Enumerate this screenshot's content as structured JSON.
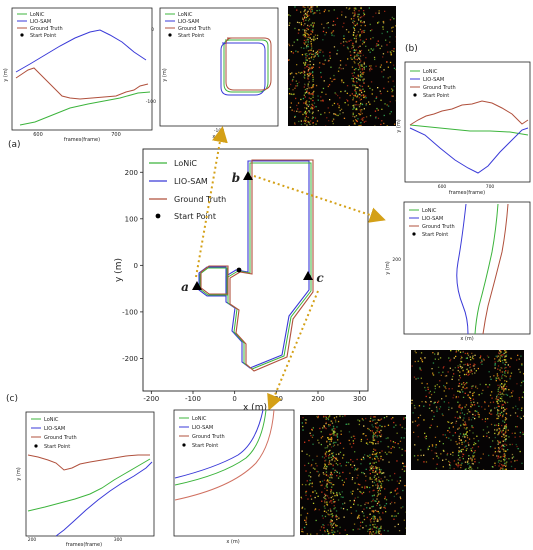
{
  "panel_labels": {
    "a": "(a)",
    "b": "(b)",
    "c": "(c)"
  },
  "point_labels": {
    "a": "a",
    "b": "b",
    "c": "c"
  },
  "legend": {
    "lonic": "LoNiC",
    "liosam": "LIO-SAM",
    "gt": "Ground Truth",
    "start": "Start Point"
  },
  "colors": {
    "lonic": "#3cb43c",
    "liosam": "#3a3ad8",
    "gt": "#b0503c",
    "arrow": "#d4a017",
    "marker": "#000000"
  },
  "main_chart": {
    "type": "line",
    "xlabel": "x (m)",
    "ylabel": "y (m)",
    "xticks": [
      -200,
      -100,
      0,
      100,
      200,
      300
    ],
    "yticks": [
      200,
      100,
      0,
      -100,
      -200
    ],
    "xlim": [
      -220,
      320
    ],
    "ylim": [
      -270,
      250
    ]
  },
  "chart_data": [
    {
      "type": "line",
      "panel": "a-left",
      "xlabel": "frames(frame)",
      "ylabel": "y (m)",
      "xticks": [
        600,
        700
      ],
      "series": [
        {
          "name": "LoNiC",
          "x": [
            560,
            590,
            620,
            650,
            680,
            710,
            740
          ],
          "y": [
            0.08,
            0.1,
            0.2,
            0.28,
            0.33,
            0.4,
            0.47
          ]
        },
        {
          "name": "LIO-SAM",
          "x": [
            560,
            580,
            600,
            620,
            640,
            660,
            680,
            700,
            720,
            740
          ],
          "y": [
            0.5,
            0.62,
            0.75,
            0.84,
            0.92,
            0.99,
            0.97,
            0.9,
            0.78,
            0.66
          ]
        },
        {
          "name": "Ground Truth",
          "x": [
            560,
            575,
            590,
            610,
            630,
            650,
            670,
            690,
            710,
            740
          ],
          "y": [
            0.45,
            0.55,
            0.5,
            0.36,
            0.3,
            0.3,
            0.31,
            0.32,
            0.36,
            0.45
          ]
        }
      ]
    },
    {
      "type": "line",
      "panel": "a-right",
      "xlabel": "x (m)",
      "ylabel": "y (m)",
      "xticks": [
        -100
      ],
      "yticks": [
        0,
        -100
      ],
      "series": [
        {
          "name": "LoNiC",
          "x": [
            -120,
            -50
          ],
          "y": [
            20,
            -95
          ]
        },
        {
          "name": "LIO-SAM",
          "x": [
            -120,
            -50
          ],
          "y": [
            20,
            -95
          ]
        },
        {
          "name": "Ground Truth",
          "x": [
            -120,
            -50
          ],
          "y": [
            20,
            -95
          ]
        }
      ]
    },
    {
      "type": "line",
      "panel": "b",
      "xlabel": "frames(frame)",
      "ylabel": "y (m)",
      "xticks": [
        600,
        700
      ],
      "series": [
        {
          "name": "LoNiC",
          "x": [
            560,
            600,
            640,
            680,
            720,
            740
          ],
          "y": [
            0.55,
            0.52,
            0.48,
            0.5,
            0.48,
            0.45
          ]
        },
        {
          "name": "LIO-SAM",
          "x": [
            560,
            590,
            620,
            660,
            680,
            710,
            740
          ],
          "y": [
            0.52,
            0.4,
            0.22,
            0.02,
            0.1,
            0.35,
            0.5
          ]
        },
        {
          "name": "Ground Truth",
          "x": [
            560,
            590,
            620,
            650,
            680,
            710,
            740
          ],
          "y": [
            0.62,
            0.7,
            0.78,
            0.86,
            0.8,
            0.72,
            0.62
          ]
        }
      ]
    },
    {
      "type": "line",
      "panel": "b-zoom",
      "xlabel": "x (m)",
      "ylabel": "y (m)",
      "yticks": [
        200
      ],
      "series": []
    },
    {
      "type": "line",
      "panel": "c-left",
      "xlabel": "frames(frame)",
      "ylabel": "y (m)",
      "xticks": [
        200,
        300
      ],
      "series": []
    },
    {
      "type": "line",
      "panel": "c-right",
      "xlabel": "x (m)",
      "series": []
    }
  ]
}
